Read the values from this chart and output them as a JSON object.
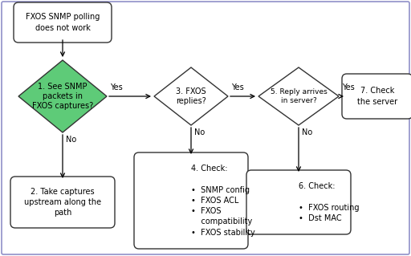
{
  "bg_color": "#ffffff",
  "border_color": "#9090c8",
  "title": "FXOS SNMP polling\ndoes not work",
  "diamond1_text": "1. See SNMP\npackets in\nFXOS captures?",
  "diamond1_color": "#5ecb78",
  "diamond2_text": "3. FXOS\nreplies?",
  "diamond3_text": "5. Reply arrives\nin server?",
  "box2_text": "2. Take captures\nupstream along the\npath",
  "box4_text": "4. Check:\n\n•  SNMP config\n•  FXOS ACL\n•  FXOS\n    compatibility\n•  FXOS stability",
  "box6_text": "6. Check:\n\n•  FXOS routing\n•  Dst MAC",
  "box7_text": "7. Check\nthe server",
  "text_color": "#000000",
  "font_size": 7.0,
  "yes_label": "Yes",
  "no_label": "No"
}
